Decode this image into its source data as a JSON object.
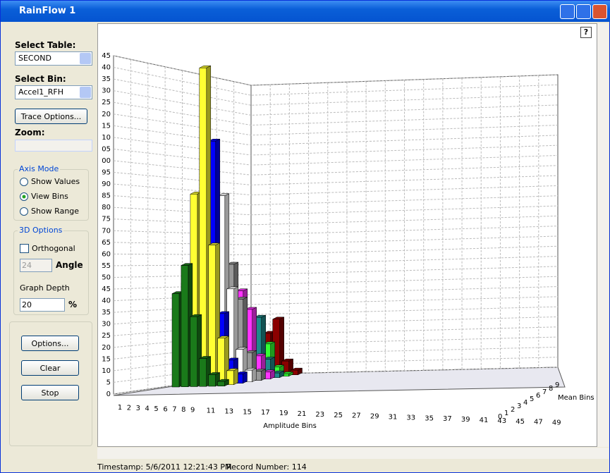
{
  "window": {
    "title": "RainFlow 1"
  },
  "help": "?",
  "panel": {
    "select_table_label": "Select Table:",
    "select_table": "SECOND",
    "select_bin_label": "Select Bin:",
    "select_bin": "Accel1_RFH",
    "trace_options": "Trace Options...",
    "zoom_label": "Zoom:",
    "axis_mode": {
      "legend": "Axis Mode",
      "options": [
        "Show Values",
        "View Bins",
        "Show Range"
      ],
      "selected": 1
    },
    "options3d": {
      "legend": "3D Options",
      "orthogonal": "Orthogonal",
      "angle_value": "24",
      "angle_label": "Angle",
      "depth_label": "Graph Depth",
      "depth_value": "20",
      "depth_unit": "%"
    },
    "buttons": [
      "Options...",
      "Clear",
      "Stop"
    ]
  },
  "chart_data": {
    "type": "bar3d",
    "xlabel": "Amplitude Bins",
    "zlabel": "Mean Bins",
    "ylim": [
      0,
      145
    ],
    "yticks": [
      0,
      5,
      10,
      15,
      20,
      25,
      30,
      35,
      40,
      45,
      50,
      55,
      60,
      65,
      70,
      75,
      80,
      85,
      90,
      95,
      {
        "value": 100,
        "label": "00"
      },
      {
        "value": 105,
        "label": "05"
      },
      {
        "value": 110,
        "label": "10"
      },
      {
        "value": 115,
        "label": "15"
      },
      {
        "value": 120,
        "label": "20"
      },
      {
        "value": 125,
        "label": "25"
      },
      {
        "value": 130,
        "label": "30"
      },
      {
        "value": 135,
        "label": "35"
      },
      {
        "value": 140,
        "label": "40"
      },
      {
        "value": 145,
        "label": "45"
      }
    ],
    "xticks": [
      1,
      2,
      3,
      4,
      5,
      6,
      7,
      8,
      9,
      11,
      13,
      15,
      17,
      19,
      21,
      23,
      25,
      27,
      29,
      31,
      33,
      35,
      37,
      39,
      41,
      43,
      45,
      47,
      49
    ],
    "zticks": [
      "0",
      "1",
      "2",
      "3",
      "4",
      "5",
      "6",
      "7",
      "8",
      "9"
    ],
    "grid": true,
    "series": [
      {
        "color": "#8b0000",
        "x": [
          1,
          2,
          3,
          4,
          5,
          6
        ],
        "values": [
          2,
          6,
          18,
          24,
          6,
          2
        ]
      },
      {
        "color": "#33ff33",
        "x": [
          1,
          2,
          3,
          4,
          5,
          6
        ],
        "values": [
          1,
          4,
          12,
          14,
          4,
          1
        ]
      },
      {
        "color": "#1f8a8a",
        "x": [
          1,
          2,
          3,
          4,
          5,
          6
        ],
        "values": [
          3,
          10,
          28,
          26,
          8,
          2
        ]
      },
      {
        "color": "#ff33ff",
        "x": [
          1,
          2,
          3,
          4,
          5,
          6
        ],
        "values": [
          4,
          14,
          38,
          30,
          10,
          3
        ]
      },
      {
        "color": "#999999",
        "x": [
          1,
          2,
          3,
          4,
          5,
          6
        ],
        "values": [
          6,
          18,
          50,
          35,
          12,
          4
        ]
      },
      {
        "color": "#ffffff",
        "x": [
          1,
          2,
          3,
          4,
          5,
          6
        ],
        "values": [
          8,
          30,
          80,
          40,
          14,
          5
        ]
      },
      {
        "color": "#0000ff",
        "x": [
          1,
          2,
          3,
          4,
          5,
          6
        ],
        "values": [
          12,
          36,
          104,
          30,
          10,
          4
        ]
      },
      {
        "color": "#ffff33",
        "x": [
          1,
          2,
          3,
          4,
          5,
          6
        ],
        "values": [
          44,
          82,
          136,
          60,
          20,
          6
        ]
      },
      {
        "color": "#1a7a1a",
        "x": [
          1,
          2,
          3,
          4,
          5,
          6
        ],
        "values": [
          40,
          52,
          30,
          12,
          5,
          2
        ]
      }
    ]
  },
  "status": {
    "timestamp": "Timestamp: 5/6/2011 12:21:43 PM",
    "record": "Record Number: 114"
  }
}
